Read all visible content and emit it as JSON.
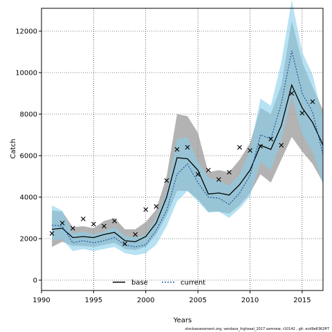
{
  "chart_data": {
    "type": "line",
    "xlabel": "Years",
    "ylabel": "Catch",
    "xlim": [
      1990,
      2017
    ],
    "ylim": [
      -500,
      13100
    ],
    "x_ticks": [
      1990,
      1995,
      2000,
      2005,
      2010,
      2015
    ],
    "y_ticks": [
      0,
      2000,
      4000,
      6000,
      8000,
      10000,
      12000
    ],
    "grid": true,
    "grid_style": "dotted",
    "legend_placement": "bottom",
    "x": [
      1991,
      1992,
      1993,
      1994,
      1995,
      1996,
      1997,
      1998,
      1999,
      2000,
      2001,
      2002,
      2003,
      2004,
      2005,
      2006,
      2007,
      2008,
      2009,
      2010,
      2011,
      2012,
      2013,
      2014,
      2015,
      2016,
      2017
    ],
    "series": [
      {
        "name": "base",
        "style": "solid",
        "line_color": "#000000",
        "band_color": "#9a9a9a",
        "values": [
          2450,
          2500,
          2050,
          2100,
          2050,
          2200,
          2300,
          1900,
          1850,
          2100,
          2750,
          4000,
          5900,
          5850,
          5300,
          4150,
          4200,
          4100,
          4600,
          5300,
          6500,
          6300,
          7450,
          9400,
          8300,
          7600,
          6500
        ],
        "lower": [
          1600,
          1850,
          1650,
          1650,
          1600,
          1700,
          1800,
          1500,
          1450,
          1600,
          2200,
          3100,
          4300,
          4300,
          3900,
          3300,
          3300,
          3200,
          3600,
          4200,
          5100,
          4700,
          5800,
          6900,
          6200,
          5600,
          4700
        ],
        "upper": [
          3350,
          3300,
          2550,
          2600,
          2500,
          2850,
          3000,
          2450,
          2450,
          2800,
          3400,
          5000,
          8000,
          7900,
          7100,
          5200,
          5300,
          5200,
          5800,
          6600,
          8300,
          8000,
          9400,
          12500,
          10500,
          9300,
          8200
        ]
      },
      {
        "name": "current",
        "style": "dotted",
        "line_color": "#1f5fa8",
        "band_color": "#87ceeb",
        "values": [
          2650,
          2600,
          1800,
          1900,
          1800,
          1900,
          2050,
          1700,
          1600,
          1700,
          2400,
          3350,
          5100,
          5600,
          4700,
          4000,
          3950,
          3650,
          4200,
          5050,
          7000,
          6800,
          8500,
          11050,
          9000,
          8100,
          6050
        ],
        "lower": [
          1950,
          1950,
          1400,
          1500,
          1400,
          1500,
          1600,
          1300,
          1200,
          1300,
          1700,
          2600,
          3800,
          4300,
          3800,
          3250,
          3300,
          3000,
          3450,
          4050,
          5700,
          5300,
          6700,
          8900,
          7000,
          6200,
          4600
        ],
        "upper": [
          3600,
          3350,
          2250,
          2350,
          2200,
          2350,
          2550,
          2150,
          2050,
          2200,
          3000,
          4250,
          6800,
          6900,
          5700,
          4950,
          4800,
          4550,
          5100,
          6300,
          8750,
          8400,
          10500,
          13500,
          11000,
          9900,
          7800
        ]
      }
    ],
    "observations": {
      "marker": "x",
      "x": [
        1991,
        1992,
        1993,
        1994,
        1995,
        1996,
        1997,
        1998,
        1999,
        2000,
        2001,
        2002,
        2003,
        2004,
        2005,
        2006,
        2007,
        2008,
        2009,
        2010,
        2011,
        2012,
        2013,
        2014,
        2015,
        2016
      ],
      "values": [
        2250,
        2750,
        2500,
        2950,
        2700,
        2600,
        2850,
        1750,
        2200,
        3400,
        3550,
        4800,
        6300,
        6400,
        5100,
        5300,
        4850,
        5200,
        6400,
        6250,
        6450,
        6800,
        6500,
        9000,
        8050,
        8600
      ]
    }
  },
  "footer": "stockassessment.org, vendace_highseal_2017 samnew, r10142 , git: ecd9e6362ff7"
}
